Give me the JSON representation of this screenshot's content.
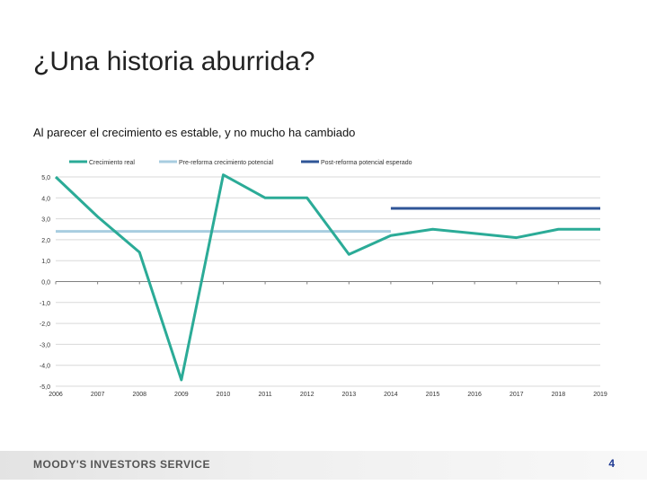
{
  "slide": {
    "title": "¿Una historia aburrida?",
    "subtitle": "Al parecer el crecimiento es estable, y no mucho ha cambiado"
  },
  "footer": {
    "brand": "MOODY'S INVESTORS SERVICE",
    "page_number": "4"
  },
  "chart_data": {
    "type": "line",
    "x": [
      "2006",
      "2007",
      "2008",
      "2009",
      "2010",
      "2011",
      "2012",
      "2013",
      "2014",
      "2015",
      "2016",
      "2017",
      "2018",
      "2019"
    ],
    "ylim": [
      -5,
      5
    ],
    "ytick_labels": [
      "5,0",
      "4,0",
      "3,0",
      "2,0",
      "1,0",
      "0,0",
      "-1,0",
      "-2,0",
      "-3,0",
      "-4,0",
      "-5,0"
    ],
    "ytick_values": [
      5,
      4,
      3,
      2,
      1,
      0,
      -1,
      -2,
      -3,
      -4,
      -5
    ],
    "grid": true,
    "legend_position": "top",
    "series": [
      {
        "name": "Crecimiento real",
        "color": "#2bab97",
        "values": [
          5.0,
          3.1,
          1.4,
          -4.7,
          5.1,
          4.0,
          4.0,
          1.3,
          2.2,
          2.5,
          2.3,
          2.1,
          2.5,
          2.5
        ]
      },
      {
        "name": "Pre-reforma crecimiento potencial",
        "color": "#a8cde0",
        "values": [
          2.4,
          2.4,
          2.4,
          2.4,
          2.4,
          2.4,
          2.4,
          2.4,
          2.4,
          null,
          null,
          null,
          null,
          null
        ]
      },
      {
        "name": "Post-reforma potencial esperado",
        "color": "#2f5597",
        "values": [
          null,
          null,
          null,
          null,
          null,
          null,
          null,
          null,
          3.5,
          3.5,
          3.5,
          3.5,
          3.5,
          3.5
        ]
      }
    ]
  }
}
